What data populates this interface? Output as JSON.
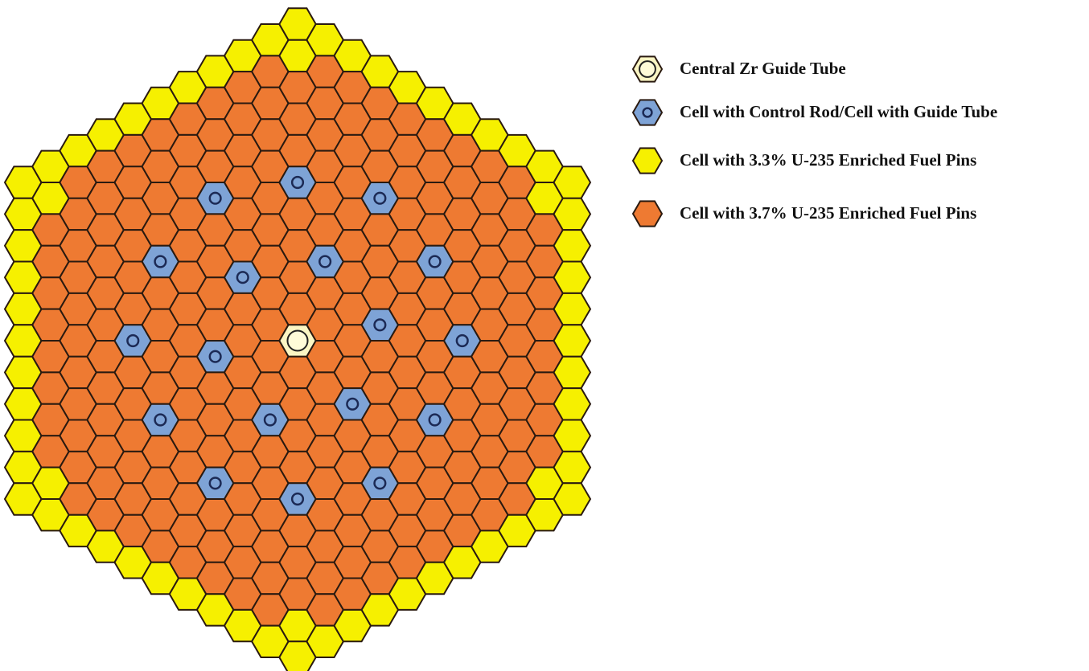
{
  "legend": [
    {
      "label": "Central Zr Guide Tube"
    },
    {
      "label": "Cell with Control Rod/Cell with Guide Tube"
    },
    {
      "label": "Cell with 3.3% U-235 Enriched Fuel Pins"
    },
    {
      "label": "Cell with 3.7% U-235 Enriched Fuel Pins"
    }
  ]
}
